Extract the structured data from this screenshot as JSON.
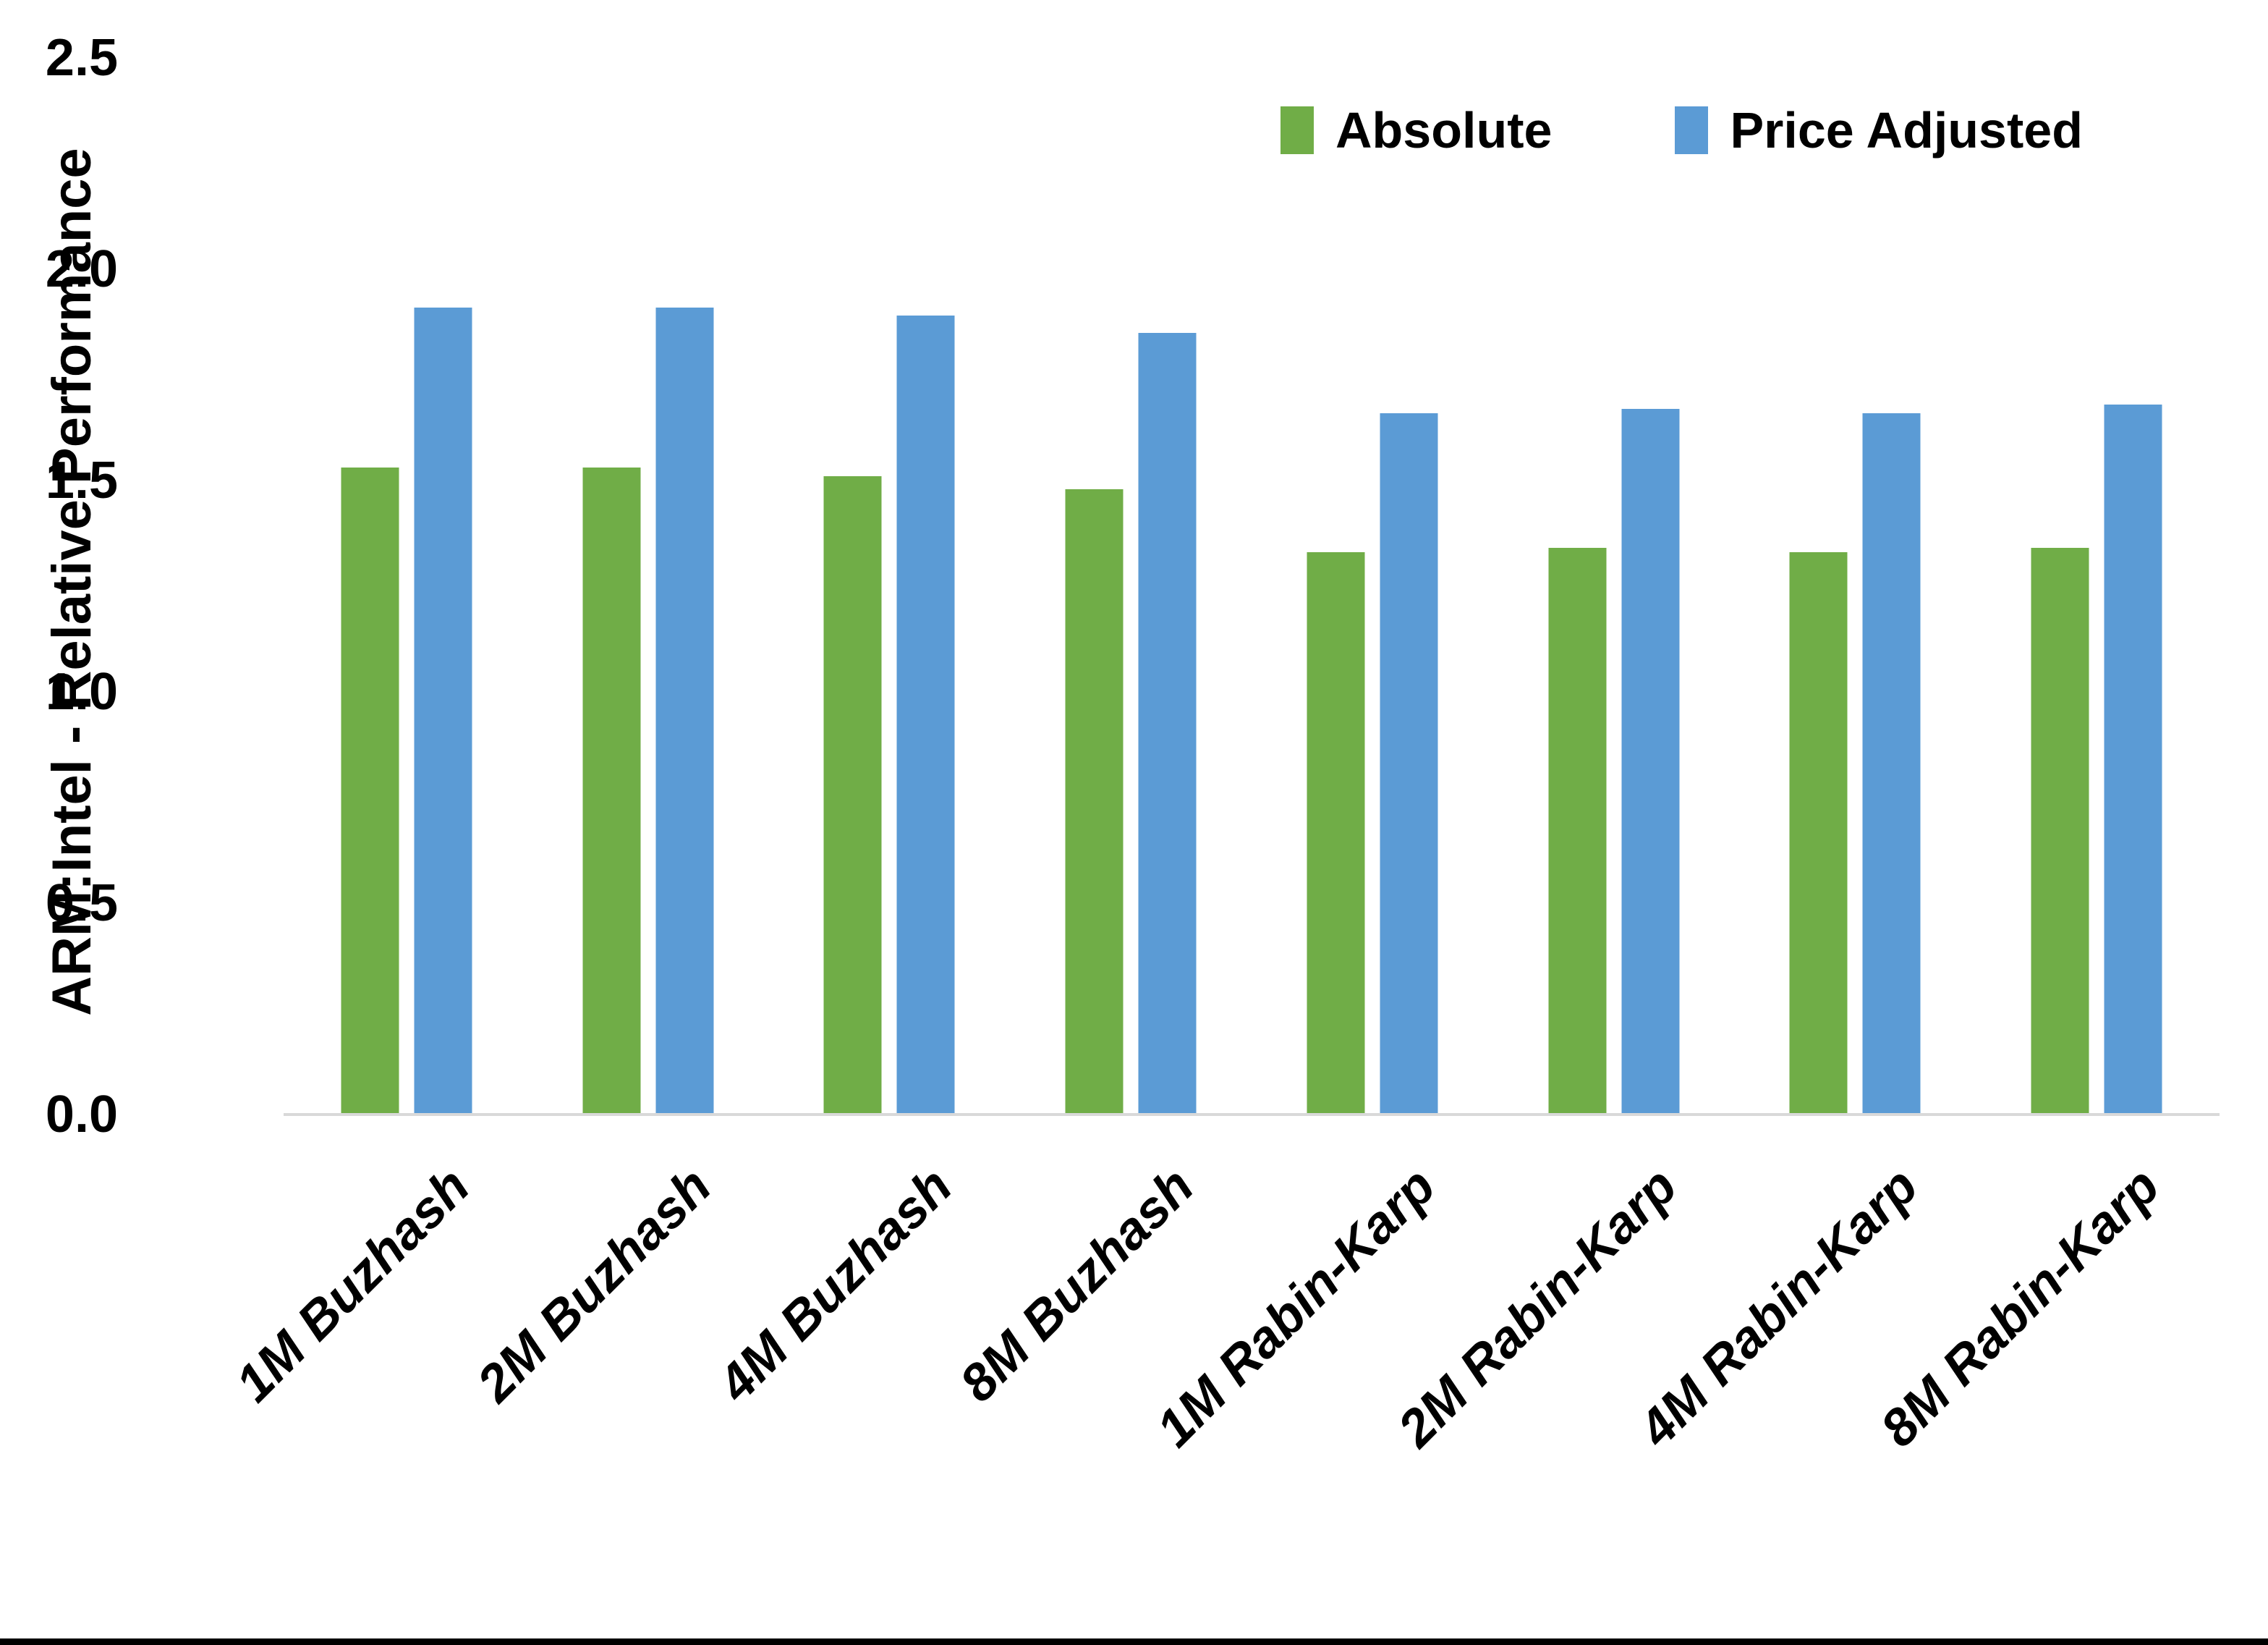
{
  "chart_data": {
    "type": "bar",
    "title": "",
    "ylabel": "ARM:Intel - Relative Performance",
    "xlabel": "",
    "categories": [
      "1M Buzhash",
      "2M Buzhash",
      "4M Buzhash",
      "8M Buzhash",
      "1M Rabin-Karp",
      "2M Rabin-Karp",
      "4M Rabin-Karp",
      "8M Rabin-Karp"
    ],
    "series": [
      {
        "name": "Absolute",
        "color": "#70AD47",
        "values": [
          1.53,
          1.53,
          1.51,
          1.48,
          1.33,
          1.34,
          1.33,
          1.34
        ]
      },
      {
        "name": "Price Adjusted",
        "color": "#5B9BD5",
        "values": [
          1.91,
          1.91,
          1.89,
          1.85,
          1.66,
          1.67,
          1.66,
          1.68
        ]
      }
    ],
    "ylim": [
      0.0,
      2.5
    ],
    "ytick_labels": [
      "0.0",
      "0.5",
      "1.0",
      "1.5",
      "2.0",
      "2.5"
    ],
    "ytick_values": [
      0.0,
      0.5,
      1.0,
      1.5,
      2.0,
      2.5
    ],
    "grid": false,
    "legend_position": "top-right",
    "axis_line_color": "#d9d9d9",
    "bottom_rule_color": "#000000"
  }
}
